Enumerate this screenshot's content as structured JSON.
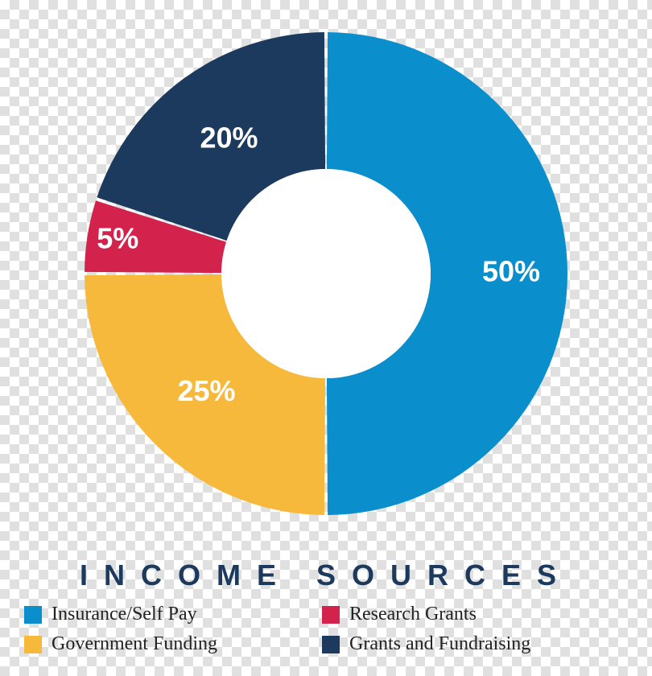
{
  "chart": {
    "type": "donut",
    "title": "INCOME SOURCES",
    "title_color": "#1c3a5e",
    "title_fontsize": 36,
    "outer_radius": 300,
    "inner_radius": 130,
    "inner_fill": "#ffffff",
    "slice_gap_deg": 0.8,
    "slice_label_fontsize": 36,
    "slice_label_color": "#ffffff",
    "slices": [
      {
        "name": "Insurance/Self Pay",
        "value": 50,
        "label": "50%",
        "color": "#0a8ecc",
        "label_r": 230,
        "label_angle_deg": 90
      },
      {
        "name": "Government Funding",
        "value": 25,
        "label": "25%",
        "color": "#f6b93c",
        "label_r": 210,
        "label_angle_deg": 225
      },
      {
        "name": "Research Grants",
        "value": 5,
        "label": "5%",
        "color": "#d3224b",
        "label_r": 262,
        "label_angle_deg": 279
      },
      {
        "name": "Grants and Fundraising",
        "value": 20,
        "label": "20%",
        "color": "#1c3a5e",
        "label_r": 205,
        "label_angle_deg": 324
      }
    ]
  },
  "legend": {
    "swatch_size": 22,
    "label_fontsize": 24,
    "label_color": "#222222",
    "columns": 2,
    "order": [
      0,
      2,
      1,
      3
    ],
    "items": [
      {
        "label": "Insurance/Self Pay",
        "color": "#0a8ecc"
      },
      {
        "label": "Government Funding",
        "color": "#f6b93c"
      },
      {
        "label": "Research Grants",
        "color": "#d3224b"
      },
      {
        "label": "Grants and Fundraising",
        "color": "#1c3a5e"
      }
    ]
  }
}
